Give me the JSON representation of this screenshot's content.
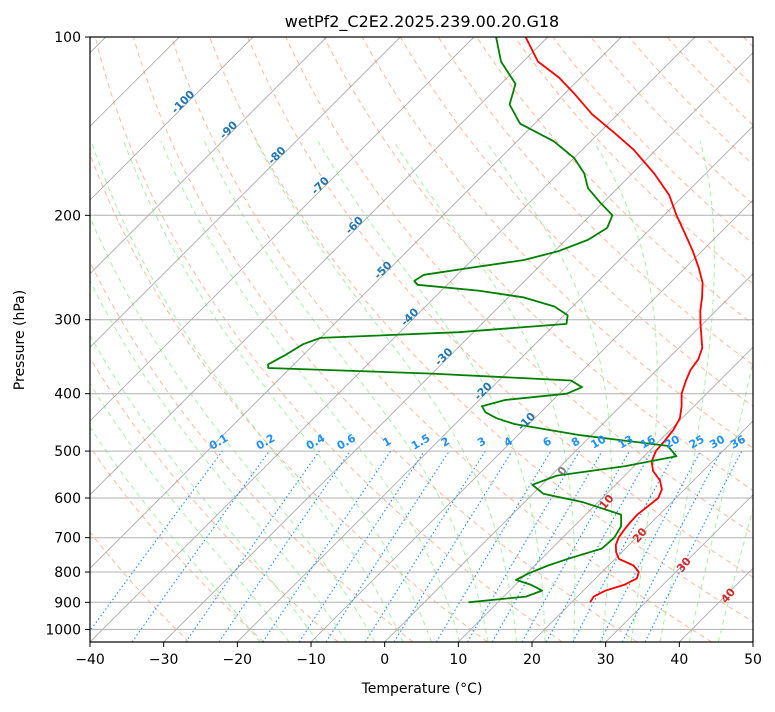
{
  "chart_data": {
    "type": "line",
    "subtype": "skew-t log-p sounding",
    "title": "wetPf2_C2E2.2025.239.00.20.G18",
    "xlabel": "Temperature (°C)",
    "ylabel": "Pressure (hPa)",
    "xlim": [
      -40,
      50
    ],
    "ylim": [
      1050,
      100
    ],
    "y_scale": "log",
    "grid": true,
    "x_ticks": [
      "−40",
      "−30",
      "−20",
      "−10",
      "0",
      "10",
      "20",
      "30",
      "40",
      "50"
    ],
    "y_ticks": [
      "100",
      "200",
      "300",
      "400",
      "500",
      "600",
      "700",
      "800",
      "900",
      "1000"
    ],
    "series": [
      {
        "color": "#ff0000",
        "points": [
          [
            22.5,
            900
          ],
          [
            22.2,
            880
          ],
          [
            23.0,
            860
          ],
          [
            24.8,
            840
          ],
          [
            25.6,
            820
          ],
          [
            25.0,
            800
          ],
          [
            23.4,
            780
          ],
          [
            20.5,
            760
          ],
          [
            19.2,
            740
          ],
          [
            18.2,
            720
          ],
          [
            17.6,
            700
          ],
          [
            17.3,
            680
          ],
          [
            17.1,
            660
          ],
          [
            17.0,
            640
          ],
          [
            17.3,
            620
          ],
          [
            17.6,
            600
          ],
          [
            16.9,
            580
          ],
          [
            15.4,
            560
          ],
          [
            13.2,
            540
          ],
          [
            11.7,
            520
          ],
          [
            10.9,
            500
          ],
          [
            10.7,
            480
          ],
          [
            10.4,
            460
          ],
          [
            9.7,
            440
          ],
          [
            8.3,
            420
          ],
          [
            6.6,
            400
          ],
          [
            5.4,
            380
          ],
          [
            4.6,
            365
          ],
          [
            4.2,
            350
          ],
          [
            3.2,
            335
          ],
          [
            1.5,
            320
          ],
          [
            -0.3,
            305
          ],
          [
            -2.1,
            290
          ],
          [
            -3.7,
            275
          ],
          [
            -5.6,
            260
          ],
          [
            -8.2,
            245
          ],
          [
            -11.2,
            230
          ],
          [
            -14.6,
            215
          ],
          [
            -18.3,
            200
          ],
          [
            -22.0,
            185
          ],
          [
            -27.0,
            170
          ],
          [
            -33.0,
            155
          ],
          [
            -38.0,
            145
          ],
          [
            -43.5,
            135
          ],
          [
            -48.5,
            125
          ],
          [
            -53.0,
            117
          ],
          [
            -58.0,
            110
          ],
          [
            -63.0,
            100
          ]
        ]
      },
      {
        "color": "#008000",
        "points": [
          [
            6.0,
            900
          ],
          [
            13.0,
            880
          ],
          [
            14.4,
            860
          ],
          [
            12.0,
            840
          ],
          [
            9.4,
            825
          ],
          [
            10.2,
            805
          ],
          [
            11.8,
            780
          ],
          [
            13.6,
            760
          ],
          [
            16.8,
            730
          ],
          [
            17.0,
            700
          ],
          [
            16.4,
            670
          ],
          [
            14.8,
            640
          ],
          [
            8.0,
            610
          ],
          [
            1.4,
            590
          ],
          [
            -1.3,
            570
          ],
          [
            0.8,
            550
          ],
          [
            8.8,
            530
          ],
          [
            14.4,
            510
          ],
          [
            11.8,
            490
          ],
          [
            -1.5,
            470
          ],
          [
            -12.0,
            450
          ],
          [
            -15.2,
            440
          ],
          [
            -17.5,
            430
          ],
          [
            -18.8,
            420
          ],
          [
            -16.5,
            410
          ],
          [
            -9.0,
            400
          ],
          [
            -7.8,
            390
          ],
          [
            -10.2,
            380
          ],
          [
            -30.0,
            370
          ],
          [
            -53.0,
            362
          ],
          [
            -53.5,
            357
          ],
          [
            -52.5,
            345
          ],
          [
            -51.5,
            330
          ],
          [
            -50.0,
            322
          ],
          [
            -32.0,
            315
          ],
          [
            -18.5,
            305
          ],
          [
            -19.5,
            295
          ],
          [
            -22.5,
            285
          ],
          [
            -28.0,
            275
          ],
          [
            -35.0,
            268
          ],
          [
            -44.0,
            262
          ],
          [
            -45.0,
            258
          ],
          [
            -44.5,
            252
          ],
          [
            -39.0,
            245
          ],
          [
            -33.0,
            238
          ],
          [
            -29.5,
            230
          ],
          [
            -27.0,
            220
          ],
          [
            -26.0,
            210
          ],
          [
            -27.0,
            200
          ],
          [
            -30.5,
            190
          ],
          [
            -34.0,
            180
          ],
          [
            -36.5,
            170
          ],
          [
            -40.0,
            160
          ],
          [
            -45.0,
            150
          ],
          [
            -52.0,
            140
          ],
          [
            -56.0,
            130
          ],
          [
            -58.0,
            120
          ],
          [
            -63.0,
            110
          ],
          [
            -67.0,
            100
          ]
        ]
      }
    ],
    "isotherm_labels": [
      "-100",
      "-90",
      "-80",
      "-70",
      "-60",
      "-50",
      "-40",
      "-30",
      "-20",
      "-10"
    ],
    "mixing_ratio_labels": [
      "0.1",
      "0.2",
      "0.4",
      "0.6",
      "1",
      "1.5",
      "2",
      "3",
      "4",
      "6",
      "8",
      "10",
      "13",
      "16",
      "20",
      "25",
      "30",
      "36"
    ],
    "moist_adiabat_labels": [
      "0",
      "10",
      "20",
      "30",
      "40"
    ]
  },
  "colors": {
    "temperature": "#ff0000",
    "dewpoint": "#008000",
    "isotherm_label": "#1f77b4",
    "mixing_ratio": "#1e90ff",
    "moist_adiabat_label": "#d62728",
    "zero_label": "#808080",
    "dry_adiabat": "#ffa07a",
    "moist_adiabat": "#90ee90",
    "grid": "#b0b0b0"
  }
}
